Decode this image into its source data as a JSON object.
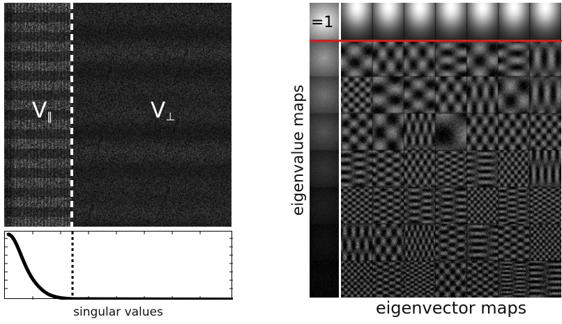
{
  "left_panel": {
    "label_parallel": "V",
    "label_parallel_sub": "∥",
    "label_perp": "V",
    "label_perp_sub": "⊥",
    "caption": "singular values"
  },
  "right_panel": {
    "eigenvalue_one_label": "=1",
    "y_axis_label": "eigenvalue maps",
    "x_axis_label": "eigenvector maps",
    "accent_line_color": "#e01818",
    "grid_rows": 8,
    "grid_cols": 7
  }
}
